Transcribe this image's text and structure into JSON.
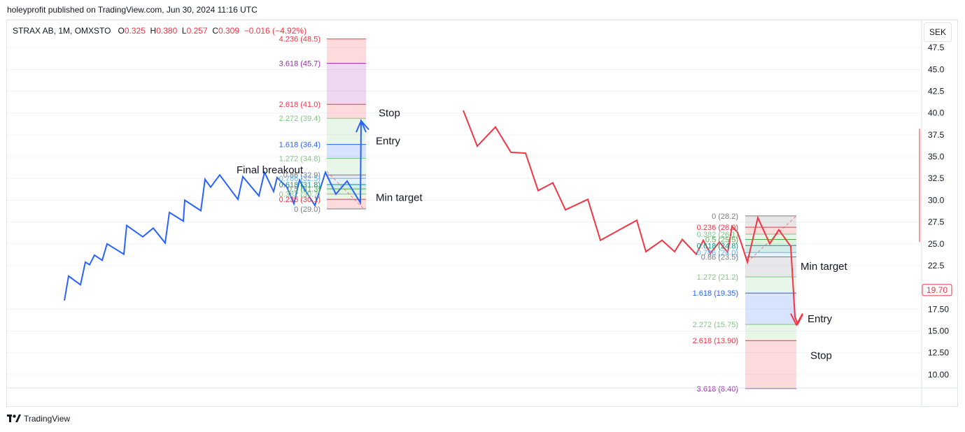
{
  "header": {
    "published": "holeyprofit published on TradingView.com, Jun 30, 2024 11:16 UTC"
  },
  "legend": {
    "symbol": "STRAX AB, 1M, OMXSTO",
    "o_label": "O",
    "o_value": "0.325",
    "h_label": "H",
    "h_value": "0.380",
    "l_label": "L",
    "l_value": "0.257",
    "c_label": "C",
    "c_value": "0.309",
    "change": "−0.016 (−4.92%)"
  },
  "currency_button": "SEK",
  "footer": {
    "brand": "TradingView"
  },
  "colors": {
    "blue_line": "#2962ff",
    "red_line": "#f23645",
    "price_tag": "#f23645"
  },
  "chart_data": {
    "type": "line",
    "y_axis": {
      "range": [
        7.5,
        50
      ],
      "ticks": [
        "47.5",
        "45.0",
        "42.5",
        "40.0",
        "37.5",
        "35.0",
        "32.5",
        "30.0",
        "27.5",
        "25.0",
        "22.5",
        "17.50",
        "15.00",
        "12.50",
        "10.00"
      ],
      "tick_values": [
        47.5,
        45,
        42.5,
        40,
        37.5,
        35,
        32.5,
        30,
        27.5,
        25,
        22.5,
        17.5,
        15,
        12.5,
        10
      ],
      "current_price_tag": "19.70",
      "current_price": 19.7
    },
    "series": [
      {
        "color": "#2962ff",
        "points": [
          [
            92,
            18.5
          ],
          [
            98,
            21.3
          ],
          [
            115,
            20.3
          ],
          [
            122,
            22.9
          ],
          [
            128,
            22.6
          ],
          [
            135,
            23.7
          ],
          [
            146,
            23.1
          ],
          [
            153,
            25.0
          ],
          [
            177,
            23.8
          ],
          [
            181,
            27.1
          ],
          [
            204,
            25.8
          ],
          [
            219,
            26.8
          ],
          [
            236,
            25.1
          ],
          [
            242,
            28.6
          ],
          [
            262,
            27.6
          ],
          [
            264,
            30.0
          ],
          [
            287,
            28.8
          ],
          [
            293,
            32.4
          ],
          [
            301,
            31.5
          ],
          [
            314,
            32.9
          ],
          [
            340,
            30.1
          ],
          [
            347,
            32.7
          ],
          [
            370,
            30.5
          ],
          [
            378,
            33.2
          ],
          [
            391,
            31.0
          ],
          [
            396,
            32.6
          ],
          [
            410,
            31.5
          ],
          [
            420,
            29.6
          ],
          [
            428,
            32.3
          ],
          [
            434,
            31.4
          ],
          [
            450,
            29.4
          ],
          [
            465,
            33.2
          ],
          [
            480,
            30.7
          ],
          [
            496,
            32.2
          ],
          [
            515,
            29.7
          ],
          [
            516,
            39.1
          ],
          [
            527,
            38.1
          ]
        ]
      },
      {
        "color": "#f23645",
        "points": [
          [
            662,
            40.3
          ],
          [
            682,
            36.2
          ],
          [
            708,
            38.4
          ],
          [
            730,
            35.5
          ],
          [
            751,
            35.4
          ],
          [
            769,
            31.1
          ],
          [
            790,
            32.0
          ],
          [
            808,
            28.9
          ],
          [
            840,
            30.1
          ],
          [
            858,
            25.4
          ],
          [
            910,
            27.7
          ],
          [
            923,
            24.1
          ],
          [
            946,
            25.4
          ],
          [
            964,
            24.1
          ],
          [
            975,
            25.5
          ],
          [
            995,
            23.8
          ],
          [
            1005,
            25.4
          ],
          [
            1015,
            23.9
          ],
          [
            1028,
            25.2
          ],
          [
            1040,
            24.0
          ],
          [
            1046,
            27.0
          ],
          [
            1054,
            26.3
          ],
          [
            1060,
            24.9
          ],
          [
            1068,
            22.9
          ],
          [
            1083,
            28.0
          ],
          [
            1100,
            25.0
          ],
          [
            1113,
            26.6
          ],
          [
            1130,
            24.7
          ],
          [
            1136,
            16.6
          ],
          [
            1140,
            15.8
          ],
          [
            1147,
            16.9
          ]
        ]
      }
    ],
    "fib_blue": {
      "levels": [
        {
          "text": "4.236 (48.5)",
          "value": 48.5,
          "color": "#f23645"
        },
        {
          "text": "3.618 (45.7)",
          "value": 45.7,
          "color": "#9c27b0"
        },
        {
          "text": "2.618 (41.0)",
          "value": 41.0,
          "color": "#f23645"
        },
        {
          "text": "2.272 (39.4)",
          "value": 39.4,
          "color": "#81c784"
        },
        {
          "text": "1.618 (36.4)",
          "value": 36.4,
          "color": "#2962ff"
        },
        {
          "text": "1.272 (34.8)",
          "value": 34.8,
          "color": "#81c784"
        },
        {
          "text": "0.86 (32.9)",
          "value": 32.9,
          "color": "#787b86"
        },
        {
          "text": "0.786 (32.5)",
          "value": 32.5,
          "color": "#64b5f6"
        },
        {
          "text": "0.618 (31.8)",
          "value": 31.8,
          "color": "#089981"
        },
        {
          "text": "0.5 (31.3)",
          "value": 31.3,
          "color": "#4caf50"
        },
        {
          "text": "0.382 (30.7)",
          "value": 30.7,
          "color": "#81c784"
        },
        {
          "text": "0.236 (30.1)",
          "value": 30.1,
          "color": "#f23645"
        },
        {
          "text": "0 (29.0)",
          "value": 29.0,
          "color": "#787b86"
        }
      ]
    },
    "fib_red": {
      "levels": [
        {
          "text": "0 (28.2)",
          "value": 28.2,
          "color": "#787b86"
        },
        {
          "text": "0.236 (26.9)",
          "value": 26.9,
          "color": "#f23645"
        },
        {
          "text": "0.382 (26.1)",
          "value": 26.1,
          "color": "#81c784"
        },
        {
          "text": "0.5 (25.5)",
          "value": 25.5,
          "color": "#4caf50"
        },
        {
          "text": "0.618 (24.8)",
          "value": 24.8,
          "color": "#089981"
        },
        {
          "text": "0.786 (24.0)",
          "value": 24.0,
          "color": "#64b5f6"
        },
        {
          "text": "0.86 (23.5)",
          "value": 23.5,
          "color": "#787b86"
        },
        {
          "text": "1.272 (21.2)",
          "value": 21.2,
          "color": "#81c784"
        },
        {
          "text": "1.618 (19.35)",
          "value": 19.35,
          "color": "#2962ff"
        },
        {
          "text": "2.272 (15.75)",
          "value": 15.75,
          "color": "#81c784"
        },
        {
          "text": "2.618 (13.90)",
          "value": 13.9,
          "color": "#f23645"
        },
        {
          "text": "3.618 (8.40)",
          "value": 8.4,
          "color": "#9c27b0"
        }
      ]
    },
    "annotations": [
      {
        "text": "Stop",
        "value": 40.0
      },
      {
        "text": "Entry",
        "value": 36.8
      },
      {
        "text": "Final breakout",
        "value": 33.5
      },
      {
        "text": "Min target",
        "value": 30.3
      },
      {
        "text": "Min target",
        "value": 22.4
      },
      {
        "text": "Entry",
        "value": 16.4
      },
      {
        "text": "Stop",
        "value": 12.2
      }
    ]
  }
}
